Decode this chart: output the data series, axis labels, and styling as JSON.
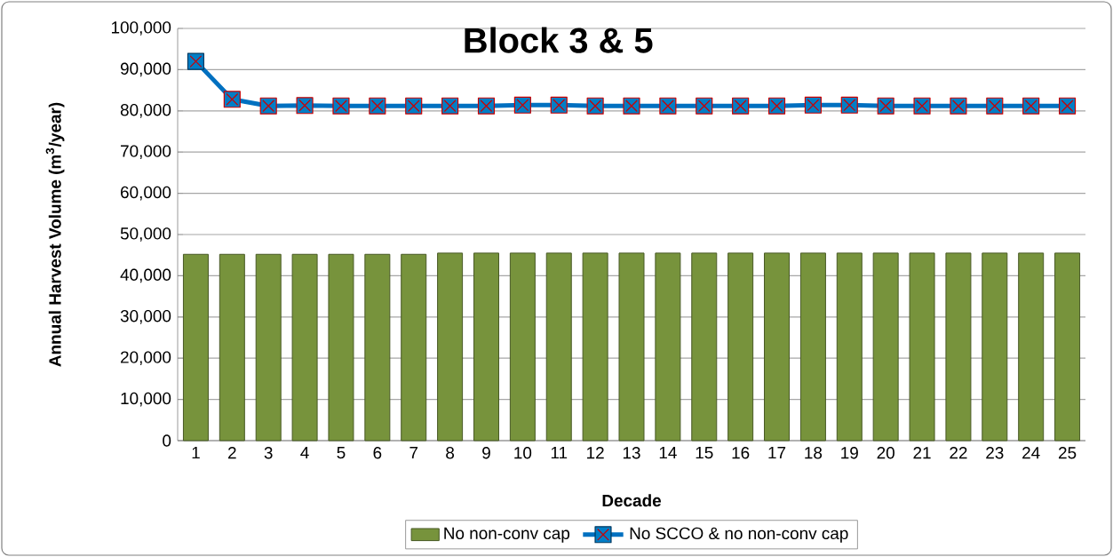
{
  "chart_data": {
    "type": "bar",
    "title": "Block 3 & 5",
    "xlabel": "Decade",
    "ylabel": "Annual Harvest Volume (m$^{3}$/year)",
    "categories": [
      "1",
      "2",
      "3",
      "4",
      "5",
      "6",
      "7",
      "8",
      "9",
      "10",
      "11",
      "12",
      "13",
      "14",
      "15",
      "16",
      "17",
      "18",
      "19",
      "20",
      "21",
      "22",
      "23",
      "24",
      "25"
    ],
    "series": [
      {
        "name": "No non-conv cap",
        "color": "#77933c",
        "values": [
          45200,
          45200,
          45200,
          45200,
          45200,
          45200,
          45200,
          45500,
          45500,
          45500,
          45500,
          45500,
          45500,
          45500,
          45500,
          45500,
          45500,
          45500,
          45500,
          45500,
          45500,
          45500,
          45500,
          45500,
          45500
        ]
      },
      {
        "name": "No SCCO & no non-conv cap",
        "type": "line",
        "color": "#0070c0",
        "marker": "square",
        "values": [
          92000,
          82800,
          81200,
          81300,
          81200,
          81200,
          81200,
          81200,
          81200,
          81400,
          81400,
          81200,
          81200,
          81200,
          81200,
          81200,
          81200,
          81400,
          81400,
          81200,
          81200,
          81200,
          81200,
          81200,
          81200
        ]
      }
    ],
    "ylim": [
      0,
      100000
    ],
    "yticks": [
      0,
      {
        "value": 10000,
        "label": "10,000"
      },
      {
        "value": 20000,
        "label": "20,000"
      },
      {
        "value": 30000,
        "label": "30,000"
      },
      {
        "value": 40000,
        "label": "40,000"
      },
      {
        "value": 50000,
        "label": "50,000"
      },
      {
        "value": 60000,
        "label": "60,000"
      },
      {
        "value": 70000,
        "label": "70,000"
      },
      {
        "value": 80000,
        "label": "80,000"
      },
      {
        "value": 90000,
        "label": "90,000"
      },
      {
        "value": 100000,
        "label": "100,000"
      }
    ],
    "grid": "y",
    "legend": "bottom"
  }
}
